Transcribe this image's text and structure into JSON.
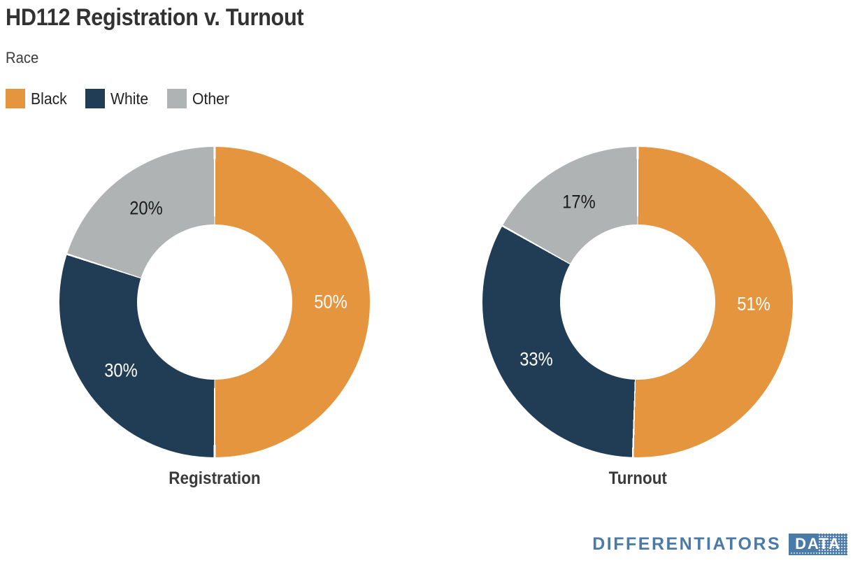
{
  "header": {
    "title": "HD112 Registration v. Turnout",
    "subtitle": "Race"
  },
  "legend": {
    "items": [
      {
        "label": "Black",
        "color": "#e6953f"
      },
      {
        "label": "White",
        "color": "#213c55"
      },
      {
        "label": "Other",
        "color": "#b0b3b4"
      }
    ]
  },
  "chart_data": [
    {
      "type": "pie",
      "subtype": "donut",
      "title": "Registration",
      "categories": [
        "Black",
        "White",
        "Other"
      ],
      "values": [
        50,
        30,
        20
      ],
      "unit": "percent",
      "data_labels": [
        "50%",
        "30%",
        "20%"
      ],
      "colors": [
        "#e6953f",
        "#213c55",
        "#b0b3b4"
      ],
      "label_colors": [
        "#ffffff",
        "#ffffff",
        "#1a1a1a"
      ],
      "start_angle_deg": 0,
      "direction": "clockwise",
      "hole_ratio": 0.5,
      "legend_position": "top-left"
    },
    {
      "type": "pie",
      "subtype": "donut",
      "title": "Turnout",
      "categories": [
        "Black",
        "White",
        "Other"
      ],
      "values": [
        51,
        33,
        17
      ],
      "unit": "percent",
      "data_labels": [
        "51%",
        "33%",
        "17%"
      ],
      "colors": [
        "#e6953f",
        "#213c55",
        "#b0b3b4"
      ],
      "label_colors": [
        "#ffffff",
        "#ffffff",
        "#1a1a1a"
      ],
      "start_angle_deg": 0,
      "direction": "clockwise",
      "hole_ratio": 0.5,
      "legend_position": "top-left"
    }
  ],
  "footer": {
    "brand": "DIFFERENTIATORS",
    "badge": "DATA",
    "brand_color": "#4a7aa6"
  }
}
